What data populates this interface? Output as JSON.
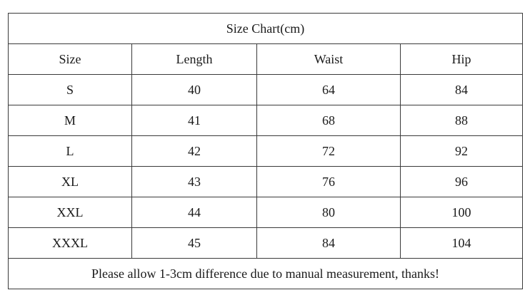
{
  "title": "Size Chart(cm)",
  "headers": [
    "Size",
    "Length",
    "Waist",
    "Hip"
  ],
  "rows": [
    [
      "S",
      "40",
      "64",
      "84"
    ],
    [
      "M",
      "41",
      "68",
      "88"
    ],
    [
      "L",
      "42",
      "72",
      "92"
    ],
    [
      "XL",
      "43",
      "76",
      "96"
    ],
    [
      "XXL",
      "44",
      "80",
      "100"
    ],
    [
      "XXXL",
      "45",
      "84",
      "104"
    ]
  ],
  "note": "Please allow 1-3cm difference due to manual measurement, thanks!"
}
